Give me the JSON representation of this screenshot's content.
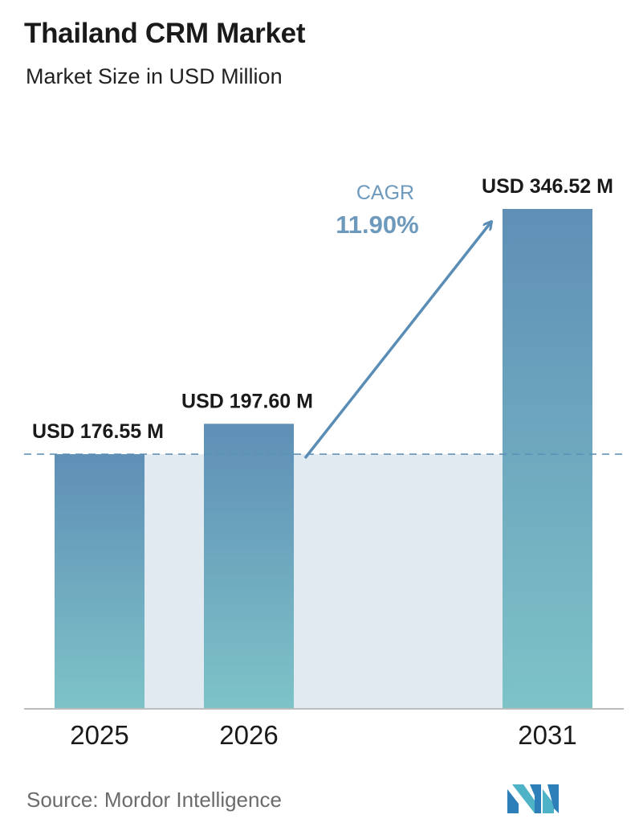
{
  "header": {
    "title": "Thailand CRM Market",
    "subtitle": "Market Size in USD Million"
  },
  "chart_data": {
    "type": "bar",
    "categories": [
      "2025",
      "2026",
      "2031"
    ],
    "values": [
      176.55,
      197.6,
      346.52
    ],
    "value_labels": [
      "USD 176.55 M",
      "USD 197.60 M",
      "USD 346.52 M"
    ],
    "title": "Thailand CRM Market",
    "subtitle": "Market Size in USD Million",
    "xlabel": "",
    "ylabel": "",
    "ylim": [
      0,
      346.52
    ],
    "grid": false,
    "reference_line": {
      "value": 176.55,
      "style": "dashed"
    },
    "annotation": {
      "label": "CAGR",
      "value": "11.90%"
    },
    "colors": {
      "bar_top": "#5f8fb6",
      "bar_bottom": "#7ec3c8",
      "band": "#e1e9f1",
      "accent": "#5a8db5"
    }
  },
  "footer": {
    "source": "Source:  Mordor Intelligence",
    "logo_icon": "mordor-intelligence-logo-icon"
  }
}
